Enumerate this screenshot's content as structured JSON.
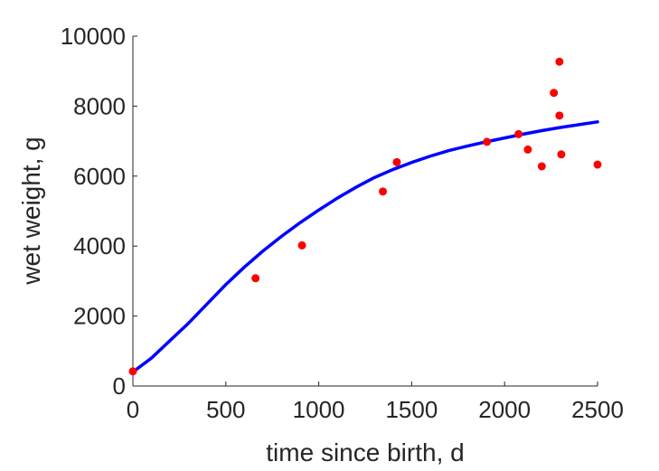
{
  "chart_data": {
    "type": "scatter",
    "title": "",
    "xlabel": "time since birth, d",
    "ylabel": "wet weight, g",
    "xlim": [
      0,
      2500
    ],
    "ylim": [
      0,
      10000
    ],
    "xticks": [
      0,
      500,
      1000,
      1500,
      2000,
      2500
    ],
    "yticks": [
      0,
      2000,
      4000,
      6000,
      8000,
      10000
    ],
    "xtick_labels": [
      "0",
      "500",
      "1000",
      "1500",
      "2000",
      "2500"
    ],
    "ytick_labels": [
      "0",
      "2000",
      "4000",
      "6000",
      "8000",
      "10000"
    ],
    "grid": false,
    "colors": {
      "points": "#ff0000",
      "curve": "#0000ff",
      "axis": "#262626"
    },
    "series": [
      {
        "type": "scatter",
        "x": [
          0,
          660,
          910,
          1345,
          1420,
          1905,
          2075,
          2125,
          2200,
          2265,
          2295,
          2295,
          2305,
          2500
        ],
        "y": [
          420,
          3080,
          4020,
          5560,
          6400,
          6980,
          7200,
          6760,
          6280,
          8380,
          9270,
          7730,
          6620,
          6330
        ]
      },
      {
        "type": "line",
        "x": [
          0,
          100,
          200,
          300,
          400,
          500,
          600,
          700,
          800,
          900,
          1000,
          1100,
          1200,
          1300,
          1400,
          1500,
          1600,
          1700,
          1800,
          1900,
          2000,
          2100,
          2200,
          2300,
          2400,
          2500
        ],
        "y": [
          400,
          800,
          1300,
          1800,
          2350,
          2900,
          3400,
          3860,
          4280,
          4670,
          5030,
          5370,
          5680,
          5960,
          6190,
          6390,
          6570,
          6730,
          6860,
          6980,
          7090,
          7200,
          7300,
          7390,
          7470,
          7550
        ]
      }
    ]
  }
}
